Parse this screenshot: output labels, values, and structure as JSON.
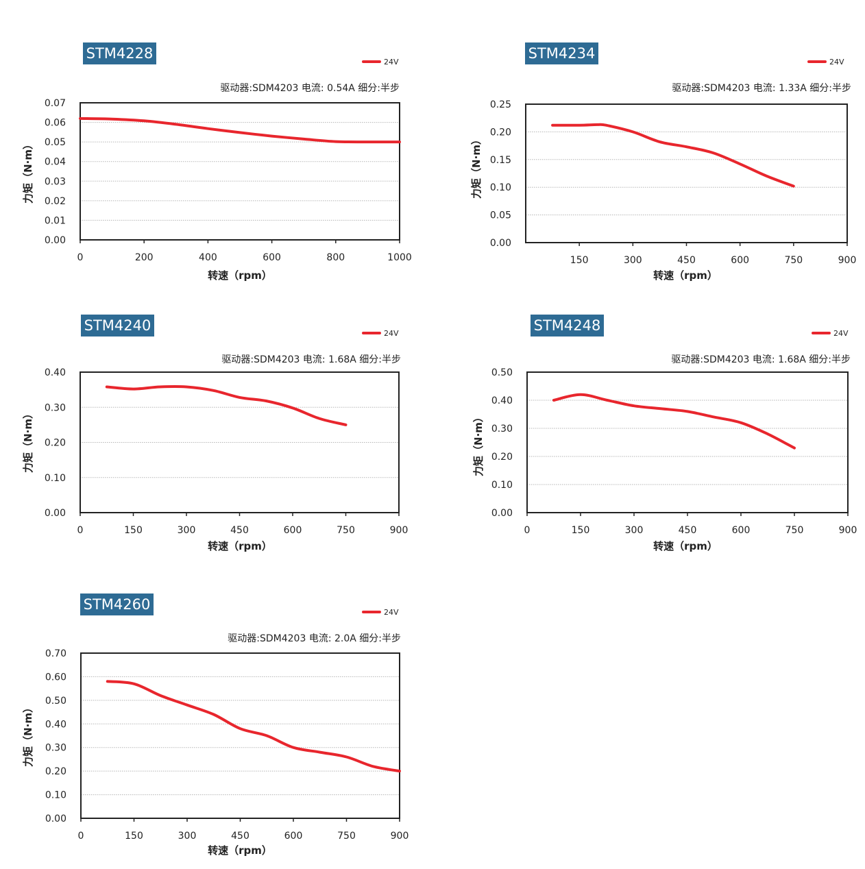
{
  "line_color": "#e8262d",
  "chart_data": [
    {
      "type": "line",
      "title": "STM4228",
      "info": "驱动器:SDM4203   电流: 0.54A   细分:半步",
      "xlabel": "转速（rpm）",
      "ylabel": "力矩（N·m）",
      "xlim": [
        0,
        1000
      ],
      "ylim": [
        0,
        0.07
      ],
      "x_ticks": [
        0,
        200,
        400,
        600,
        800,
        1000
      ],
      "y_ticks": [
        0,
        0.01,
        0.02,
        0.03,
        0.04,
        0.05,
        0.06,
        0.07
      ],
      "x_tick_labels": [
        "0",
        "200",
        "400",
        "600",
        "800",
        "1000"
      ],
      "y_tick_labels": [
        "0.00",
        "0.01",
        "0.02",
        "0.03",
        "0.04",
        "0.05",
        "0.06",
        "0.07"
      ],
      "grid": true,
      "series": [
        {
          "name": "24V",
          "x": [
            0,
            100,
            200,
            300,
            400,
            500,
            600,
            700,
            800,
            900,
            1000
          ],
          "y": [
            0.062,
            0.0617,
            0.0608,
            0.059,
            0.0568,
            0.0548,
            0.053,
            0.0515,
            0.0502,
            0.05,
            0.05
          ]
        }
      ]
    },
    {
      "type": "line",
      "title": "STM4234",
      "info": "驱动器:SDM4203   电流: 1.33A  细分:半步",
      "xlabel": "转速（rpm）",
      "ylabel": "力矩（N·m）",
      "xlim": [
        0,
        900
      ],
      "ylim": [
        0,
        0.25
      ],
      "x_ticks": [
        150,
        300,
        450,
        600,
        750,
        900
      ],
      "y_ticks": [
        0,
        0.05,
        0.1,
        0.15,
        0.2,
        0.25
      ],
      "x_tick_labels": [
        "150",
        "300",
        "450",
        "600",
        "750",
        "900"
      ],
      "y_tick_labels": [
        "0.00",
        "0.05",
        "0.10",
        "0.15",
        "0.20",
        "0.25"
      ],
      "grid": true,
      "series": [
        {
          "name": "24V",
          "x": [
            75,
            150,
            200,
            225,
            300,
            375,
            450,
            525,
            600,
            675,
            750
          ],
          "y": [
            0.212,
            0.212,
            0.213,
            0.212,
            0.2,
            0.182,
            0.173,
            0.162,
            0.142,
            0.12,
            0.102
          ]
        }
      ]
    },
    {
      "type": "line",
      "title": "STM4240",
      "info": "驱动器:SDM4203   电流: 1.68A  细分:半步",
      "xlabel": "转速（rpm）",
      "ylabel": "力矩（N·m）",
      "xlim": [
        0,
        900
      ],
      "ylim": [
        0,
        0.4
      ],
      "x_ticks": [
        0,
        150,
        300,
        450,
        600,
        750,
        900
      ],
      "y_ticks": [
        0,
        0.1,
        0.2,
        0.3,
        0.4
      ],
      "x_tick_labels": [
        "0",
        "150",
        "300",
        "450",
        "600",
        "750",
        "900"
      ],
      "y_tick_labels": [
        "0.00",
        "0.10",
        "0.20",
        "0.30",
        "0.40"
      ],
      "grid": true,
      "series": [
        {
          "name": "24V",
          "x": [
            75,
            150,
            225,
            300,
            375,
            450,
            525,
            600,
            675,
            750
          ],
          "y": [
            0.358,
            0.352,
            0.358,
            0.358,
            0.348,
            0.328,
            0.318,
            0.298,
            0.268,
            0.25
          ]
        }
      ]
    },
    {
      "type": "line",
      "title": "STM4248",
      "info": "驱动器:SDM4203   电流: 1.68A  细分:半步",
      "xlabel": "转速（rpm）",
      "ylabel": "力矩（N·m）",
      "xlim": [
        0,
        900
      ],
      "ylim": [
        0,
        0.5
      ],
      "x_ticks": [
        0,
        150,
        300,
        450,
        600,
        750,
        900
      ],
      "y_ticks": [
        0,
        0.1,
        0.2,
        0.3,
        0.4,
        0.5
      ],
      "x_tick_labels": [
        "0",
        "150",
        "300",
        "450",
        "600",
        "750",
        "900"
      ],
      "y_tick_labels": [
        "0.00",
        "0.10",
        "0.20",
        "0.30",
        "0.40",
        "0.50"
      ],
      "grid": true,
      "series": [
        {
          "name": "24V",
          "x": [
            75,
            150,
            225,
            300,
            375,
            450,
            525,
            600,
            675,
            750
          ],
          "y": [
            0.4,
            0.42,
            0.4,
            0.38,
            0.37,
            0.36,
            0.34,
            0.32,
            0.28,
            0.23
          ]
        }
      ]
    },
    {
      "type": "line",
      "title": "STM4260",
      "info": "驱动器:SDM4203   电流: 2.0A   细分:半步",
      "xlabel": "转速（rpm）",
      "ylabel": "力矩（N·m）",
      "xlim": [
        0,
        900
      ],
      "ylim": [
        0,
        0.7
      ],
      "x_ticks": [
        0,
        150,
        300,
        450,
        600,
        750,
        900
      ],
      "y_ticks": [
        0,
        0.1,
        0.2,
        0.3,
        0.4,
        0.5,
        0.6,
        0.7
      ],
      "x_tick_labels": [
        "0",
        "150",
        "300",
        "450",
        "600",
        "750",
        "900"
      ],
      "y_tick_labels": [
        "0.00",
        "0.10",
        "0.20",
        "0.30",
        "0.40",
        "0.50",
        "0.60",
        "0.70"
      ],
      "grid": true,
      "series": [
        {
          "name": "24V",
          "x": [
            75,
            150,
            225,
            300,
            375,
            450,
            525,
            600,
            675,
            750,
            825,
            900
          ],
          "y": [
            0.58,
            0.57,
            0.52,
            0.48,
            0.44,
            0.38,
            0.35,
            0.3,
            0.28,
            0.26,
            0.22,
            0.2
          ]
        }
      ]
    }
  ]
}
